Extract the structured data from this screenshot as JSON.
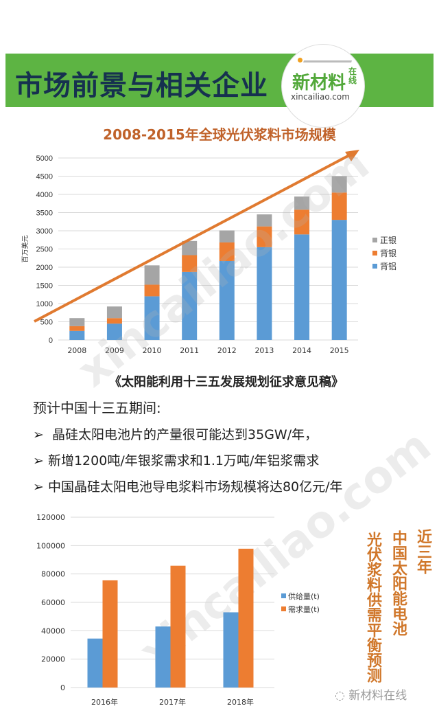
{
  "banner": {
    "title": "市场前景与相关企业",
    "color": "#5db443"
  },
  "logo": {
    "cn": "新材料",
    "zx": "在线",
    "en": "xincailiao.com"
  },
  "watermark": "xincailiao.com",
  "chart_data": [
    {
      "type": "bar",
      "stacked": true,
      "title": "2008-2015年全球光伏浆料市场规模",
      "ylabel": "百万美元",
      "xlabel": "",
      "categories": [
        "2008",
        "2009",
        "2010",
        "2011",
        "2012",
        "2013",
        "2014",
        "2015"
      ],
      "ylim": [
        0,
        5000
      ],
      "yticks": [
        "0",
        "500",
        "1000",
        "1500",
        "2000",
        "2500",
        "3000",
        "3500",
        "4000",
        "4500",
        "5000"
      ],
      "grid": true,
      "legend": "right",
      "trend_arrow": true,
      "series": [
        {
          "name": "背铝",
          "color": "#5b9bd5",
          "values": [
            250,
            450,
            1200,
            1870,
            2170,
            2550,
            2900,
            3300
          ]
        },
        {
          "name": "背银",
          "color": "#ed7d31",
          "values": [
            130,
            150,
            320,
            460,
            510,
            570,
            680,
            750
          ]
        },
        {
          "name": "正银",
          "color": "#a5a5a5",
          "values": [
            220,
            320,
            530,
            390,
            330,
            330,
            360,
            450
          ]
        }
      ]
    },
    {
      "type": "bar",
      "title": "",
      "xlabel": "",
      "ylabel": "",
      "categories": [
        "2016年",
        "2017年",
        "2018年"
      ],
      "ylim": [
        0,
        120000
      ],
      "yticks": [
        "0",
        "20000",
        "40000",
        "60000",
        "80000",
        "100000",
        "120000"
      ],
      "grid": true,
      "legend": "right",
      "series": [
        {
          "name": "供给量(t)",
          "color": "#5b9bd5",
          "values": [
            34500,
            43000,
            53000
          ]
        },
        {
          "name": "需求量(t)",
          "color": "#ed7d31",
          "values": [
            75500,
            85800,
            97800
          ]
        }
      ]
    }
  ],
  "policy": {
    "heading": "《太阳能利用十三五发展规划征求意见稿》",
    "intro": "预计中国十三五期间:",
    "bullet_symbol": "➢",
    "bullets": [
      "晶硅太阳电池片的产量很可能达到35GW/年，",
      "新增1200吨/年银浆需求和1.1万吨/年铝浆需求",
      "中国晶硅太阳电池导电浆料市场规模将达80亿元/年"
    ]
  },
  "side_title": {
    "col1": "近三年",
    "col2": "中国太阳能电池",
    "col3": "光伏浆料供需平衡预测"
  },
  "footer": "新材料在线"
}
